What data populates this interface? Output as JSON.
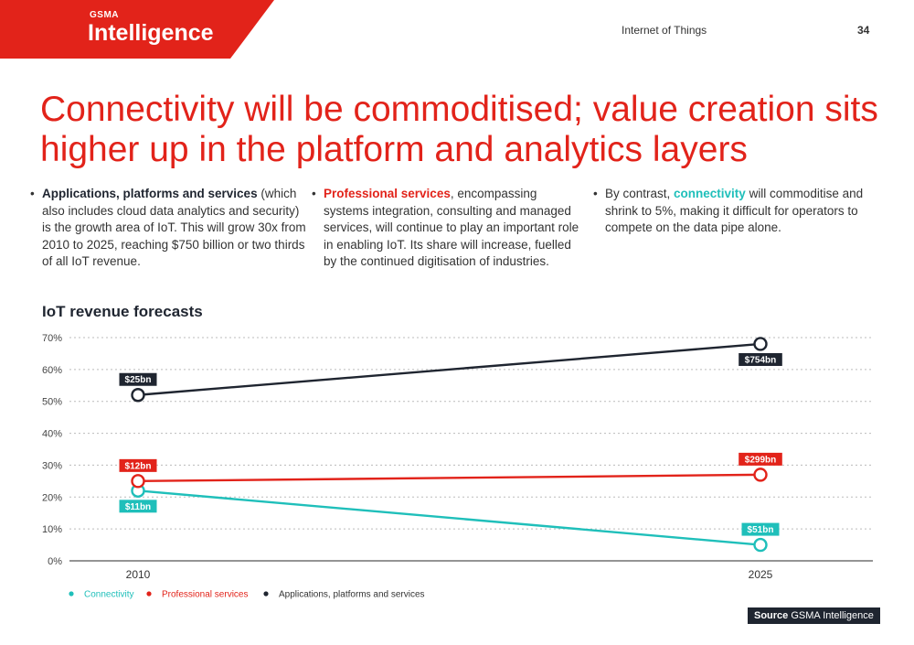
{
  "brand": {
    "small": "GSMA",
    "name": "Intelligence"
  },
  "header": {
    "section": "Internet of Things",
    "page_number": "34"
  },
  "headline": "Connectivity will be commoditised; value creation sits higher up in the platform and analytics layers",
  "columns": [
    {
      "highlight": "Applications, platforms and services",
      "text": " (which also includes cloud data analytics and security) is the growth area of IoT. This will grow 30x from 2010 to 2025, reaching $750 billion or two thirds of all IoT revenue."
    },
    {
      "highlight": "Professional services",
      "text": ", encompassing systems integration, consulting and managed services, will continue to play an important role in enabling IoT. Its share will increase, fuelled by the continued digitisation of industries."
    },
    {
      "prefix": "By contrast, ",
      "highlight": "connectivity",
      "text": " will commoditise and shrink to 5%, making it difficult for operators to compete on the data pipe alone."
    }
  ],
  "chart_title": "IoT revenue forecasts",
  "source": {
    "label": "Source",
    "text": " GSMA Intelligence"
  },
  "chart_data": {
    "type": "line",
    "x": [
      "2010",
      "2025"
    ],
    "ylim": [
      0,
      70
    ],
    "y_ticks": [
      "0%",
      "10%",
      "20%",
      "30%",
      "40%",
      "50%",
      "60%",
      "70%"
    ],
    "grid": true,
    "legend_position": "bottom-left",
    "series": [
      {
        "name": "Connectivity",
        "color": "#1fbfba",
        "values": [
          22,
          5
        ],
        "labels": [
          "$11bn",
          "$51bn"
        ],
        "label_pos": [
          "below",
          "above"
        ]
      },
      {
        "name": "Professional services",
        "color": "#e2231a",
        "values": [
          25,
          27
        ],
        "labels": [
          "$12bn",
          "$299bn"
        ],
        "label_pos": [
          "above",
          "above"
        ]
      },
      {
        "name": "Applications, platforms and services",
        "color": "#1f2530",
        "values": [
          52,
          68
        ],
        "labels": [
          "$25bn",
          "$754bn"
        ],
        "label_pos": [
          "above",
          "below"
        ]
      }
    ]
  }
}
